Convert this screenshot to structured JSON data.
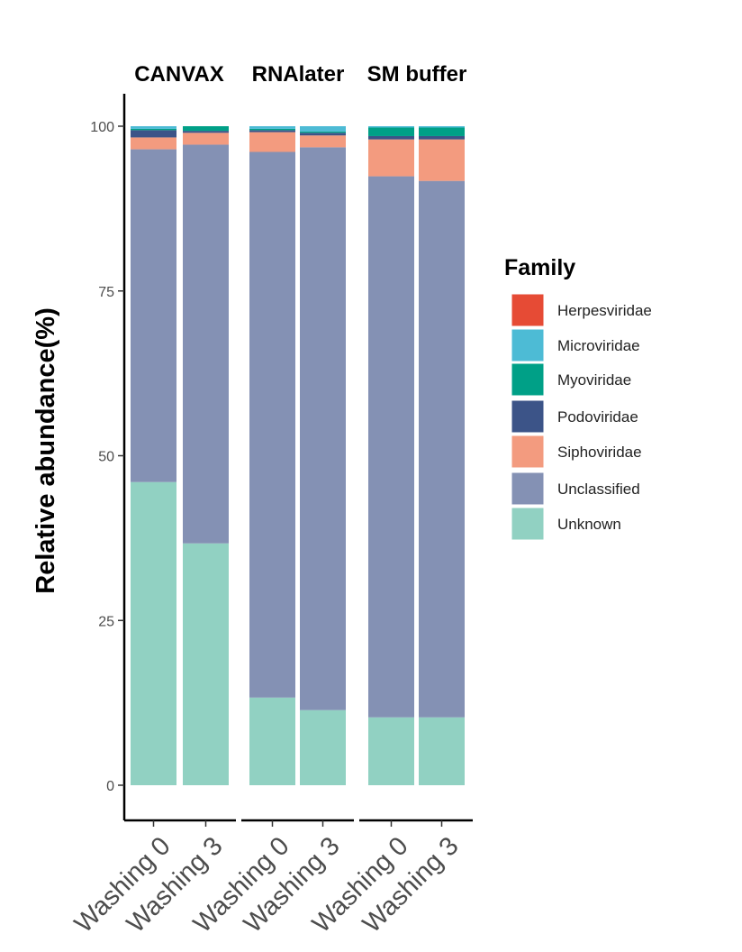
{
  "chart_data": {
    "type": "bar",
    "stacked": true,
    "ylabel": "Relative abundance(%)",
    "xlabel": "",
    "ylim": [
      0,
      100
    ],
    "yticks": [
      0,
      25,
      50,
      75,
      100
    ],
    "legend_position": "right",
    "legend": {
      "title": "Family",
      "entries": [
        {
          "name": "Herpesviridae",
          "color": "#E64B35"
        },
        {
          "name": "Microviridae",
          "color": "#4DBBD5"
        },
        {
          "name": "Myoviridae",
          "color": "#00A087"
        },
        {
          "name": "Podoviridae",
          "color": "#3C5488"
        },
        {
          "name": "Siphoviridae",
          "color": "#F39B7F"
        },
        {
          "name": "Unclassified",
          "color": "#8491B4"
        },
        {
          "name": "Unknown",
          "color": "#91D1C2"
        }
      ]
    },
    "facets": [
      {
        "title": "CANVAX",
        "categories": [
          "Washing 0",
          "Washing 3"
        ],
        "series": [
          {
            "name": "Unknown",
            "values": [
              46.0,
              36.7
            ]
          },
          {
            "name": "Unclassified",
            "values": [
              50.5,
              60.5
            ]
          },
          {
            "name": "Siphoviridae",
            "values": [
              1.8,
              1.8
            ]
          },
          {
            "name": "Podoviridae",
            "values": [
              1.1,
              0.3
            ]
          },
          {
            "name": "Myoviridae",
            "values": [
              0.2,
              0.7
            ]
          },
          {
            "name": "Microviridae",
            "values": [
              0.4,
              0.0
            ]
          },
          {
            "name": "Herpesviridae",
            "values": [
              0.0,
              0.0
            ]
          }
        ]
      },
      {
        "title": "RNAlater",
        "categories": [
          "Washing 0",
          "Washing 3"
        ],
        "series": [
          {
            "name": "Unknown",
            "values": [
              13.3,
              11.4
            ]
          },
          {
            "name": "Unclassified",
            "values": [
              82.8,
              85.4
            ]
          },
          {
            "name": "Siphoviridae",
            "values": [
              3.0,
              1.8
            ]
          },
          {
            "name": "Podoviridae",
            "values": [
              0.3,
              0.4
            ]
          },
          {
            "name": "Myoviridae",
            "values": [
              0.2,
              0.2
            ]
          },
          {
            "name": "Microviridae",
            "values": [
              0.4,
              0.8
            ]
          },
          {
            "name": "Herpesviridae",
            "values": [
              0.0,
              0.0
            ]
          }
        ]
      },
      {
        "title": "SM buffer",
        "categories": [
          "Washing 0",
          "Washing 3"
        ],
        "series": [
          {
            "name": "Unknown",
            "values": [
              10.3,
              10.3
            ]
          },
          {
            "name": "Unclassified",
            "values": [
              82.1,
              81.4
            ]
          },
          {
            "name": "Siphoviridae",
            "values": [
              5.6,
              6.3
            ]
          },
          {
            "name": "Podoviridae",
            "values": [
              0.5,
              0.5
            ]
          },
          {
            "name": "Myoviridae",
            "values": [
              1.3,
              1.3
            ]
          },
          {
            "name": "Microviridae",
            "values": [
              0.2,
              0.2
            ]
          },
          {
            "name": "Herpesviridae",
            "values": [
              0.0,
              0.0
            ]
          }
        ]
      }
    ]
  }
}
